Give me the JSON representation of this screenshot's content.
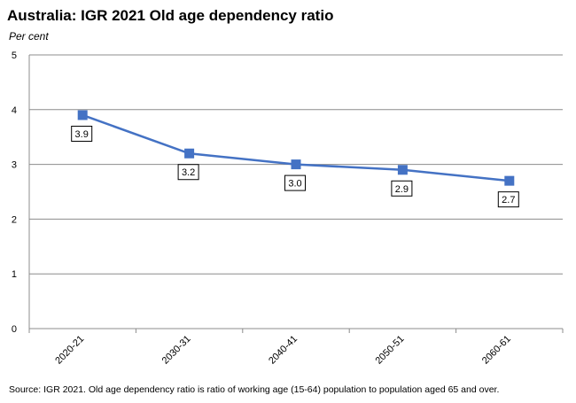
{
  "chart_data": {
    "type": "line",
    "title": "Australia: IGR 2021 Old age dependency ratio",
    "subtitle": "Per cent",
    "categories": [
      "2020-21",
      "2030-31",
      "2040-41",
      "2050-51",
      "2060-61"
    ],
    "series": [
      {
        "values": [
          3.9,
          3.2,
          3.0,
          2.9,
          2.7
        ],
        "color": "#4472C4"
      }
    ],
    "data_labels": [
      "3.9",
      "3.2",
      "3.0",
      "2.9",
      "2.7"
    ],
    "yticks": [
      "0",
      "1",
      "2",
      "3",
      "4",
      "5"
    ],
    "ylim": [
      0,
      5
    ],
    "grid": true,
    "legend": "none",
    "source": "Source: IGR 2021.  Old age dependency ratio is ratio of working age (15-64) population to population aged 65 and over."
  }
}
